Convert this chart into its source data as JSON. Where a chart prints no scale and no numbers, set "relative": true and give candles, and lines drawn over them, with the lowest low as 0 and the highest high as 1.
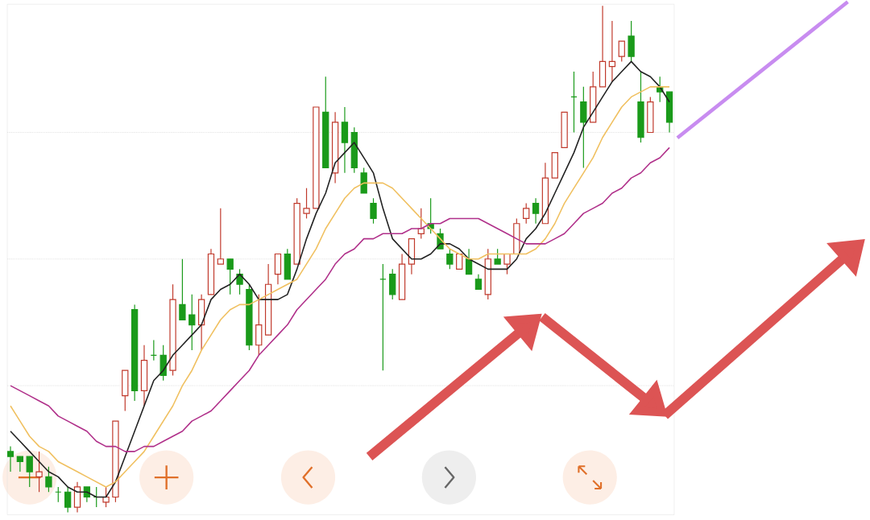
{
  "chart_data": {
    "type": "candlestick",
    "relative": true,
    "grid": "y",
    "categories": [
      null,
      null,
      null,
      null,
      null,
      null,
      null,
      null,
      null,
      null,
      null,
      null,
      null,
      null,
      null,
      null,
      null,
      null,
      null,
      null,
      null,
      null,
      null,
      null,
      null,
      null,
      null,
      null,
      null,
      null,
      null,
      null,
      null,
      null,
      null,
      null,
      null,
      null,
      null,
      null,
      null,
      null,
      null,
      null,
      null,
      null,
      null,
      null,
      null,
      null,
      null,
      null,
      null,
      null,
      null,
      null,
      null,
      null,
      null,
      null,
      null,
      null,
      null,
      null,
      null,
      null,
      null,
      null,
      null,
      null
    ],
    "ohlc": [
      [
        0.12,
        0.13,
        0.08,
        0.11
      ],
      [
        0.11,
        0.11,
        0.08,
        0.1
      ],
      [
        0.11,
        0.11,
        0.05,
        0.08
      ],
      [
        0.07,
        0.12,
        0.04,
        0.08
      ],
      [
        0.07,
        0.09,
        0.04,
        0.05
      ],
      [
        0.04,
        0.05,
        0.02,
        0.04
      ],
      [
        0.04,
        0.05,
        0,
        0.01
      ],
      [
        0.01,
        0.06,
        0,
        0.05
      ],
      [
        0.05,
        0.05,
        0.02,
        0.03
      ],
      [
        0.03,
        0.05,
        0.01,
        0.03
      ],
      [
        0.02,
        0.05,
        0.01,
        0.03
      ],
      [
        0.03,
        0.18,
        0.02,
        0.18
      ],
      [
        0.23,
        0.28,
        0.2,
        0.28
      ],
      [
        0.4,
        0.41,
        0.22,
        0.24
      ],
      [
        0.24,
        0.33,
        0.21,
        0.3
      ],
      [
        0.31,
        0.34,
        0.3,
        0.31
      ],
      [
        0.31,
        0.33,
        0.26,
        0.27
      ],
      [
        0.28,
        0.45,
        0.27,
        0.42
      ],
      [
        0.41,
        0.5,
        0.38,
        0.38
      ],
      [
        0.39,
        0.43,
        0.32,
        0.37
      ],
      [
        0.37,
        0.43,
        0.32,
        0.42
      ],
      [
        0.43,
        0.52,
        0.43,
        0.51
      ],
      [
        0.49,
        0.6,
        0.49,
        0.5
      ],
      [
        0.5,
        0.5,
        0.43,
        0.48
      ],
      [
        0.47,
        0.48,
        0.43,
        0.45
      ],
      [
        0.44,
        0.45,
        0.32,
        0.33
      ],
      [
        0.33,
        0.43,
        0.31,
        0.37
      ],
      [
        0.35,
        0.49,
        0.35,
        0.45
      ],
      [
        0.47,
        0.51,
        0.45,
        0.51
      ],
      [
        0.51,
        0.52,
        0.46,
        0.46
      ],
      [
        0.49,
        0.62,
        0.49,
        0.61
      ],
      [
        0.59,
        0.64,
        0.58,
        0.6
      ],
      [
        0.6,
        0.8,
        0.6,
        0.8
      ],
      [
        0.79,
        0.86,
        0.68,
        0.68
      ],
      [
        0.67,
        0.79,
        0.65,
        0.77
      ],
      [
        0.77,
        0.8,
        0.67,
        0.73
      ],
      [
        0.75,
        0.76,
        0.67,
        0.68
      ],
      [
        0.67,
        0.68,
        0.63,
        0.63
      ],
      [
        0.61,
        0.62,
        0.57,
        0.58
      ],
      [
        0.46,
        0.49,
        0.28,
        0.46
      ],
      [
        0.47,
        0.48,
        0.42,
        0.43
      ],
      [
        0.42,
        0.51,
        0.42,
        0.49
      ],
      [
        0.49,
        0.54,
        0.47,
        0.54
      ],
      [
        0.55,
        0.6,
        0.54,
        0.56
      ],
      [
        0.57,
        0.62,
        0.55,
        0.56
      ],
      [
        0.55,
        0.56,
        0.52,
        0.52
      ],
      [
        0.51,
        0.52,
        0.48,
        0.49
      ],
      [
        0.48,
        0.51,
        0.48,
        0.51
      ],
      [
        0.5,
        0.52,
        0.47,
        0.47
      ],
      [
        0.46,
        0.47,
        0.44,
        0.44
      ],
      [
        0.43,
        0.52,
        0.42,
        0.5
      ],
      [
        0.5,
        0.52,
        0.49,
        0.49
      ],
      [
        0.49,
        0.51,
        0.47,
        0.51
      ],
      [
        0.51,
        0.58,
        0.51,
        0.57
      ],
      [
        0.58,
        0.61,
        0.57,
        0.6
      ],
      [
        0.61,
        0.62,
        0.57,
        0.59
      ],
      [
        0.57,
        0.69,
        0.57,
        0.66
      ],
      [
        0.66,
        0.71,
        0.66,
        0.71
      ],
      [
        0.72,
        0.79,
        0.72,
        0.79
      ],
      [
        0.82,
        0.87,
        0.75,
        0.82
      ],
      [
        0.81,
        0.84,
        0.68,
        0.77
      ],
      [
        0.77,
        0.87,
        0.77,
        0.84
      ],
      [
        0.84,
        1,
        0.84,
        0.89
      ],
      [
        0.88,
        0.97,
        0.85,
        0.89
      ],
      [
        0.9,
        0.93,
        0.89,
        0.93
      ],
      [
        0.94,
        0.97,
        0.89,
        0.9
      ],
      [
        0.81,
        0.87,
        0.73,
        0.74
      ],
      [
        0.75,
        0.82,
        0.75,
        0.81
      ],
      [
        0.84,
        0.86,
        0.81,
        0.83
      ],
      [
        0.83,
        0.83,
        0.75,
        0.77
      ]
    ],
    "colors": [
      "#1a9a1a",
      "#1a9a1a",
      "#1a9a1a",
      "#c0392b",
      "#1a9a1a",
      "#1a9a1a",
      "#1a9a1a",
      "#c0392b",
      "#1a9a1a",
      "#1a9a1a",
      "#c0392b",
      "#c0392b",
      "#c0392b",
      "#1a9a1a",
      "#c0392b",
      "#1a9a1a",
      "#1a9a1a",
      "#c0392b",
      "#1a9a1a",
      "#1a9a1a",
      "#c0392b",
      "#c0392b",
      "#c0392b",
      "#1a9a1a",
      "#1a9a1a",
      "#1a9a1a",
      "#c0392b",
      "#c0392b",
      "#c0392b",
      "#1a9a1a",
      "#c0392b",
      "#c0392b",
      "#c0392b",
      "#1a9a1a",
      "#c0392b",
      "#1a9a1a",
      "#1a9a1a",
      "#1a9a1a",
      "#1a9a1a",
      "#1a9a1a",
      "#1a9a1a",
      "#c0392b",
      "#c0392b",
      "#c0392b",
      "#1a9a1a",
      "#1a9a1a",
      "#1a9a1a",
      "#c0392b",
      "#1a9a1a",
      "#1a9a1a",
      "#c0392b",
      "#1a9a1a",
      "#c0392b",
      "#c0392b",
      "#c0392b",
      "#1a9a1a",
      "#c0392b",
      "#c0392b",
      "#c0392b",
      "#1a9a1a",
      "#1a9a1a",
      "#c0392b",
      "#c0392b",
      "#c0392b",
      "#c0392b",
      "#1a9a1a",
      "#1a9a1a",
      "#c0392b",
      "#1a9a1a",
      "#1a9a1a"
    ],
    "series": [
      {
        "type": "line",
        "color": "#222222",
        "values": [
          0.16,
          0.14,
          0.12,
          0.1,
          0.08,
          0.07,
          0.05,
          0.04,
          0.04,
          0.03,
          0.03,
          0.06,
          0.11,
          0.16,
          0.21,
          0.26,
          0.28,
          0.31,
          0.33,
          0.35,
          0.37,
          0.42,
          0.44,
          0.45,
          0.47,
          0.45,
          0.42,
          0.42,
          0.42,
          0.43,
          0.48,
          0.54,
          0.59,
          0.63,
          0.69,
          0.71,
          0.73,
          0.7,
          0.67,
          0.6,
          0.54,
          0.52,
          0.5,
          0.5,
          0.51,
          0.53,
          0.53,
          0.52,
          0.5,
          0.49,
          0.48,
          0.48,
          0.48,
          0.5,
          0.54,
          0.56,
          0.59,
          0.63,
          0.67,
          0.71,
          0.76,
          0.79,
          0.82,
          0.85,
          0.87,
          0.89,
          0.87,
          0.86,
          0.84,
          0.81
        ]
      },
      {
        "type": "line",
        "color": "#f0c060",
        "values": [
          0.21,
          0.18,
          0.15,
          0.13,
          0.12,
          0.1,
          0.09,
          0.08,
          0.07,
          0.06,
          0.05,
          0.06,
          0.08,
          0.1,
          0.12,
          0.15,
          0.18,
          0.21,
          0.25,
          0.28,
          0.32,
          0.35,
          0.38,
          0.4,
          0.41,
          0.41,
          0.42,
          0.43,
          0.44,
          0.45,
          0.46,
          0.49,
          0.52,
          0.56,
          0.59,
          0.62,
          0.64,
          0.65,
          0.65,
          0.65,
          0.64,
          0.62,
          0.6,
          0.58,
          0.56,
          0.54,
          0.52,
          0.51,
          0.5,
          0.5,
          0.51,
          0.51,
          0.51,
          0.51,
          0.51,
          0.52,
          0.54,
          0.57,
          0.61,
          0.64,
          0.67,
          0.7,
          0.74,
          0.77,
          0.8,
          0.82,
          0.83,
          0.84,
          0.84,
          0.84
        ]
      },
      {
        "type": "line",
        "color": "#b0308a",
        "values": [
          0.25,
          0.24,
          0.23,
          0.22,
          0.21,
          0.19,
          0.18,
          0.17,
          0.16,
          0.14,
          0.13,
          0.13,
          0.12,
          0.12,
          0.13,
          0.13,
          0.14,
          0.15,
          0.16,
          0.18,
          0.19,
          0.2,
          0.22,
          0.24,
          0.26,
          0.28,
          0.31,
          0.33,
          0.35,
          0.37,
          0.4,
          0.42,
          0.44,
          0.46,
          0.49,
          0.51,
          0.52,
          0.54,
          0.54,
          0.55,
          0.55,
          0.55,
          0.56,
          0.56,
          0.57,
          0.57,
          0.58,
          0.58,
          0.58,
          0.58,
          0.57,
          0.56,
          0.55,
          0.54,
          0.53,
          0.53,
          0.53,
          0.54,
          0.55,
          0.57,
          0.59,
          0.6,
          0.61,
          0.63,
          0.64,
          0.66,
          0.67,
          0.69,
          0.7,
          0.72
        ]
      }
    ]
  }
}
